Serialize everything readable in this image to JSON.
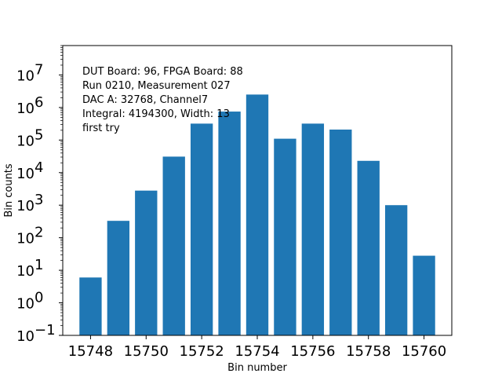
{
  "chart_data": {
    "type": "bar",
    "title": "",
    "xlabel": "Bin number",
    "ylabel": "Bin counts",
    "yscale": "log",
    "ylim": [
      0.1,
      80000000
    ],
    "xlim": [
      15747,
      15761
    ],
    "bar_color": "#1f77b4",
    "x": [
      15748,
      15749,
      15750,
      15751,
      15752,
      15753,
      15754,
      15755,
      15756,
      15757,
      15758,
      15759,
      15760
    ],
    "values": [
      6,
      330,
      2800,
      31000,
      320000,
      750000,
      2500000,
      110000,
      320000,
      210000,
      23000,
      1000,
      28
    ],
    "x_ticks": [
      15748,
      15750,
      15752,
      15754,
      15756,
      15758,
      15760
    ],
    "x_tick_labels": [
      "15748",
      "15750",
      "15752",
      "15754",
      "15756",
      "15758",
      "15760"
    ],
    "y_tick_exponents": [
      -1,
      0,
      1,
      2,
      3,
      4,
      5,
      6,
      7
    ],
    "annotation_lines": [
      "DUT Board: 96, FPGA Board: 88",
      "Run 0210, Measurement 027",
      "DAC A: 32768, Channel7",
      "Integral: 4194300, Width: 13",
      "first try"
    ],
    "annotation_position": "top-left"
  }
}
